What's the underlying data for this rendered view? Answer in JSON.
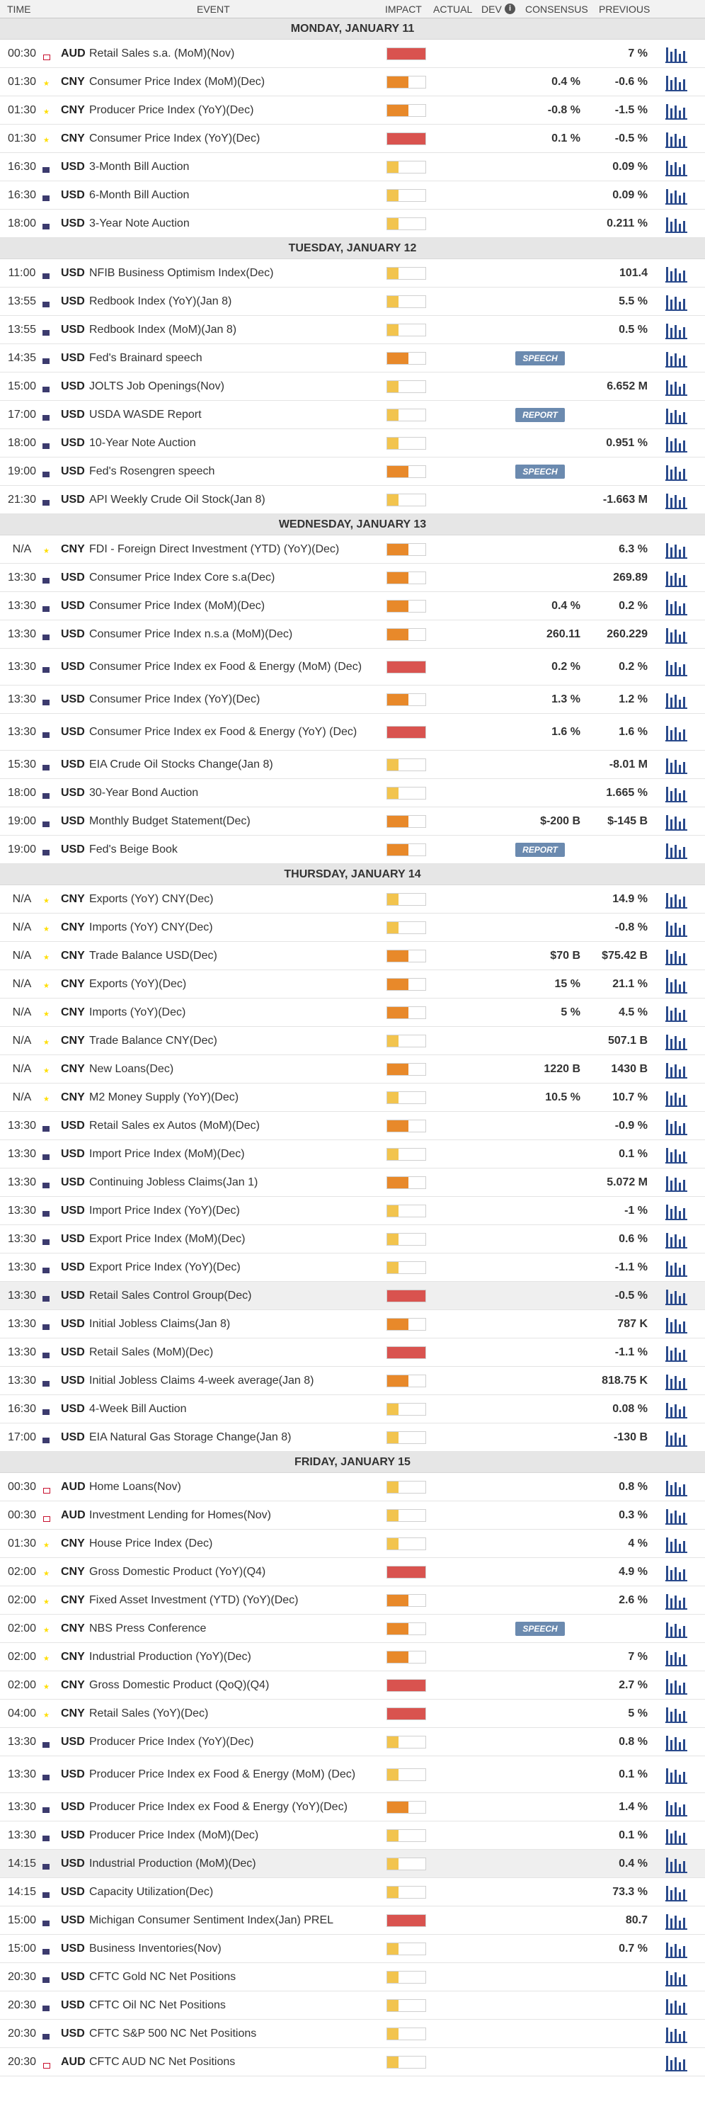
{
  "header": {
    "time": "TIME",
    "event": "EVENT",
    "impact": "IMPACT",
    "actual": "ACTUAL",
    "dev": "DEV",
    "consensus": "CONSENSUS",
    "previous": "PREVIOUS"
  },
  "impact_colors": {
    "high": "#d9534f",
    "medium": "#e8892a",
    "low": "#f2c44e"
  },
  "days": [
    {
      "label": "MONDAY, JANUARY 11",
      "events": [
        {
          "time": "00:30",
          "cur": "AUD",
          "flag": "au",
          "name": "Retail Sales s.a. (MoM)(Nov)",
          "impact": "high",
          "consensus": "",
          "previous": "7 %"
        },
        {
          "time": "01:30",
          "cur": "CNY",
          "flag": "cn",
          "name": "Consumer Price Index (MoM)(Dec)",
          "impact": "medium",
          "consensus": "0.4 %",
          "previous": "-0.6 %"
        },
        {
          "time": "01:30",
          "cur": "CNY",
          "flag": "cn",
          "name": "Producer Price Index (YoY)(Dec)",
          "impact": "medium",
          "consensus": "-0.8 %",
          "previous": "-1.5 %"
        },
        {
          "time": "01:30",
          "cur": "CNY",
          "flag": "cn",
          "name": "Consumer Price Index (YoY)(Dec)",
          "impact": "high",
          "consensus": "0.1 %",
          "previous": "-0.5 %"
        },
        {
          "time": "16:30",
          "cur": "USD",
          "flag": "us",
          "name": "3-Month Bill Auction",
          "impact": "low",
          "consensus": "",
          "previous": "0.09 %"
        },
        {
          "time": "16:30",
          "cur": "USD",
          "flag": "us",
          "name": "6-Month Bill Auction",
          "impact": "low",
          "consensus": "",
          "previous": "0.09 %"
        },
        {
          "time": "18:00",
          "cur": "USD",
          "flag": "us",
          "name": "3-Year Note Auction",
          "impact": "low",
          "consensus": "",
          "previous": "0.211 %"
        }
      ]
    },
    {
      "label": "TUESDAY, JANUARY 12",
      "events": [
        {
          "time": "11:00",
          "cur": "USD",
          "flag": "us",
          "name": "NFIB Business Optimism Index(Dec)",
          "impact": "low",
          "consensus": "",
          "previous": "101.4"
        },
        {
          "time": "13:55",
          "cur": "USD",
          "flag": "us",
          "name": "Redbook Index (YoY)(Jan 8)",
          "impact": "low",
          "consensus": "",
          "previous": "5.5 %"
        },
        {
          "time": "13:55",
          "cur": "USD",
          "flag": "us",
          "name": "Redbook Index (MoM)(Jan 8)",
          "impact": "low",
          "consensus": "",
          "previous": "0.5 %"
        },
        {
          "time": "14:35",
          "cur": "USD",
          "flag": "us",
          "name": "Fed's Brainard speech",
          "impact": "medium",
          "consensus": "",
          "previous": "",
          "tag": "SPEECH"
        },
        {
          "time": "15:00",
          "cur": "USD",
          "flag": "us",
          "name": "JOLTS Job Openings(Nov)",
          "impact": "low",
          "consensus": "",
          "previous": "6.652 M"
        },
        {
          "time": "17:00",
          "cur": "USD",
          "flag": "us",
          "name": "USDA WASDE Report",
          "impact": "low",
          "consensus": "",
          "previous": "",
          "tag": "REPORT"
        },
        {
          "time": "18:00",
          "cur": "USD",
          "flag": "us",
          "name": "10-Year Note Auction",
          "impact": "low",
          "consensus": "",
          "previous": "0.951 %"
        },
        {
          "time": "19:00",
          "cur": "USD",
          "flag": "us",
          "name": "Fed's Rosengren speech",
          "impact": "medium",
          "consensus": "",
          "previous": "",
          "tag": "SPEECH"
        },
        {
          "time": "21:30",
          "cur": "USD",
          "flag": "us",
          "name": "API Weekly Crude Oil Stock(Jan 8)",
          "impact": "low",
          "consensus": "",
          "previous": "-1.663 M"
        }
      ]
    },
    {
      "label": "WEDNESDAY, JANUARY 13",
      "events": [
        {
          "time": "N/A",
          "cur": "CNY",
          "flag": "cn",
          "name": "FDI - Foreign Direct Investment (YTD) (YoY)(Dec)",
          "impact": "medium",
          "consensus": "",
          "previous": "6.3 %"
        },
        {
          "time": "13:30",
          "cur": "USD",
          "flag": "us",
          "name": "Consumer Price Index Core s.a(Dec)",
          "impact": "medium",
          "consensus": "",
          "previous": "269.89"
        },
        {
          "time": "13:30",
          "cur": "USD",
          "flag": "us",
          "name": "Consumer Price Index (MoM)(Dec)",
          "impact": "medium",
          "consensus": "0.4 %",
          "previous": "0.2 %"
        },
        {
          "time": "13:30",
          "cur": "USD",
          "flag": "us",
          "name": "Consumer Price Index n.s.a (MoM)(Dec)",
          "impact": "medium",
          "consensus": "260.11",
          "previous": "260.229"
        },
        {
          "time": "13:30",
          "cur": "USD",
          "flag": "us",
          "name": "Consumer Price Index ex Food & Energy (MoM) (Dec)",
          "impact": "high",
          "consensus": "0.2 %",
          "previous": "0.2 %",
          "tall": true
        },
        {
          "time": "13:30",
          "cur": "USD",
          "flag": "us",
          "name": "Consumer Price Index (YoY)(Dec)",
          "impact": "medium",
          "consensus": "1.3 %",
          "previous": "1.2 %"
        },
        {
          "time": "13:30",
          "cur": "USD",
          "flag": "us",
          "name": "Consumer Price Index ex Food & Energy (YoY) (Dec)",
          "impact": "high",
          "consensus": "1.6 %",
          "previous": "1.6 %",
          "tall": true
        },
        {
          "time": "15:30",
          "cur": "USD",
          "flag": "us",
          "name": "EIA Crude Oil Stocks Change(Jan 8)",
          "impact": "low",
          "consensus": "",
          "previous": "-8.01 M"
        },
        {
          "time": "18:00",
          "cur": "USD",
          "flag": "us",
          "name": "30-Year Bond Auction",
          "impact": "low",
          "consensus": "",
          "previous": "1.665 %"
        },
        {
          "time": "19:00",
          "cur": "USD",
          "flag": "us",
          "name": "Monthly Budget Statement(Dec)",
          "impact": "medium",
          "consensus": "$-200 B",
          "previous": "$-145 B"
        },
        {
          "time": "19:00",
          "cur": "USD",
          "flag": "us",
          "name": "Fed's Beige Book",
          "impact": "medium",
          "consensus": "",
          "previous": "",
          "tag": "REPORT"
        }
      ]
    },
    {
      "label": "THURSDAY, JANUARY 14",
      "events": [
        {
          "time": "N/A",
          "cur": "CNY",
          "flag": "cn",
          "name": "Exports (YoY) CNY(Dec)",
          "impact": "low",
          "consensus": "",
          "previous": "14.9 %"
        },
        {
          "time": "N/A",
          "cur": "CNY",
          "flag": "cn",
          "name": "Imports (YoY) CNY(Dec)",
          "impact": "low",
          "consensus": "",
          "previous": "-0.8 %"
        },
        {
          "time": "N/A",
          "cur": "CNY",
          "flag": "cn",
          "name": "Trade Balance USD(Dec)",
          "impact": "medium",
          "consensus": "$70 B",
          "previous": "$75.42 B"
        },
        {
          "time": "N/A",
          "cur": "CNY",
          "flag": "cn",
          "name": "Exports (YoY)(Dec)",
          "impact": "medium",
          "consensus": "15 %",
          "previous": "21.1 %"
        },
        {
          "time": "N/A",
          "cur": "CNY",
          "flag": "cn",
          "name": "Imports (YoY)(Dec)",
          "impact": "medium",
          "consensus": "5 %",
          "previous": "4.5 %"
        },
        {
          "time": "N/A",
          "cur": "CNY",
          "flag": "cn",
          "name": "Trade Balance CNY(Dec)",
          "impact": "low",
          "consensus": "",
          "previous": "507.1 B"
        },
        {
          "time": "N/A",
          "cur": "CNY",
          "flag": "cn",
          "name": "New Loans(Dec)",
          "impact": "medium",
          "consensus": "1220 B",
          "previous": "1430 B"
        },
        {
          "time": "N/A",
          "cur": "CNY",
          "flag": "cn",
          "name": "M2 Money Supply (YoY)(Dec)",
          "impact": "low",
          "consensus": "10.5 %",
          "previous": "10.7 %"
        },
        {
          "time": "13:30",
          "cur": "USD",
          "flag": "us",
          "name": "Retail Sales ex Autos (MoM)(Dec)",
          "impact": "medium",
          "consensus": "",
          "previous": "-0.9 %"
        },
        {
          "time": "13:30",
          "cur": "USD",
          "flag": "us",
          "name": "Import Price Index (MoM)(Dec)",
          "impact": "low",
          "consensus": "",
          "previous": "0.1 %"
        },
        {
          "time": "13:30",
          "cur": "USD",
          "flag": "us",
          "name": "Continuing Jobless Claims(Jan 1)",
          "impact": "medium",
          "consensus": "",
          "previous": "5.072 M"
        },
        {
          "time": "13:30",
          "cur": "USD",
          "flag": "us",
          "name": "Import Price Index (YoY)(Dec)",
          "impact": "low",
          "consensus": "",
          "previous": "-1 %"
        },
        {
          "time": "13:30",
          "cur": "USD",
          "flag": "us",
          "name": "Export Price Index (MoM)(Dec)",
          "impact": "low",
          "consensus": "",
          "previous": "0.6 %"
        },
        {
          "time": "13:30",
          "cur": "USD",
          "flag": "us",
          "name": "Export Price Index (YoY)(Dec)",
          "impact": "low",
          "consensus": "",
          "previous": "-1.1 %"
        },
        {
          "time": "13:30",
          "cur": "USD",
          "flag": "us",
          "name": "Retail Sales Control Group(Dec)",
          "impact": "high",
          "consensus": "",
          "previous": "-0.5 %",
          "hl": true
        },
        {
          "time": "13:30",
          "cur": "USD",
          "flag": "us",
          "name": "Initial Jobless Claims(Jan 8)",
          "impact": "medium",
          "consensus": "",
          "previous": "787 K"
        },
        {
          "time": "13:30",
          "cur": "USD",
          "flag": "us",
          "name": "Retail Sales (MoM)(Dec)",
          "impact": "high",
          "consensus": "",
          "previous": "-1.1 %"
        },
        {
          "time": "13:30",
          "cur": "USD",
          "flag": "us",
          "name": "Initial Jobless Claims 4-week average(Jan 8)",
          "impact": "medium",
          "consensus": "",
          "previous": "818.75 K"
        },
        {
          "time": "16:30",
          "cur": "USD",
          "flag": "us",
          "name": "4-Week Bill Auction",
          "impact": "low",
          "consensus": "",
          "previous": "0.08 %"
        },
        {
          "time": "17:00",
          "cur": "USD",
          "flag": "us",
          "name": "EIA Natural Gas Storage Change(Jan 8)",
          "impact": "low",
          "consensus": "",
          "previous": "-130 B"
        }
      ]
    },
    {
      "label": "FRIDAY, JANUARY 15",
      "events": [
        {
          "time": "00:30",
          "cur": "AUD",
          "flag": "au",
          "name": "Home Loans(Nov)",
          "impact": "low",
          "consensus": "",
          "previous": "0.8 %"
        },
        {
          "time": "00:30",
          "cur": "AUD",
          "flag": "au",
          "name": "Investment Lending for Homes(Nov)",
          "impact": "low",
          "consensus": "",
          "previous": "0.3 %"
        },
        {
          "time": "01:30",
          "cur": "CNY",
          "flag": "cn",
          "name": "House Price Index (Dec)",
          "impact": "low",
          "consensus": "",
          "previous": "4 %"
        },
        {
          "time": "02:00",
          "cur": "CNY",
          "flag": "cn",
          "name": "Gross Domestic Product (YoY)(Q4)",
          "impact": "high",
          "consensus": "",
          "previous": "4.9 %"
        },
        {
          "time": "02:00",
          "cur": "CNY",
          "flag": "cn",
          "name": "Fixed Asset Investment (YTD) (YoY)(Dec)",
          "impact": "medium",
          "consensus": "",
          "previous": "2.6 %"
        },
        {
          "time": "02:00",
          "cur": "CNY",
          "flag": "cn",
          "name": "NBS Press Conference",
          "impact": "medium",
          "consensus": "",
          "previous": "",
          "tag": "SPEECH"
        },
        {
          "time": "02:00",
          "cur": "CNY",
          "flag": "cn",
          "name": "Industrial Production (YoY)(Dec)",
          "impact": "medium",
          "consensus": "",
          "previous": "7 %"
        },
        {
          "time": "02:00",
          "cur": "CNY",
          "flag": "cn",
          "name": "Gross Domestic Product (QoQ)(Q4)",
          "impact": "high",
          "consensus": "",
          "previous": "2.7 %"
        },
        {
          "time": "04:00",
          "cur": "CNY",
          "flag": "cn",
          "name": "Retail Sales (YoY)(Dec)",
          "impact": "high",
          "consensus": "",
          "previous": "5 %"
        },
        {
          "time": "13:30",
          "cur": "USD",
          "flag": "us",
          "name": "Producer Price Index (YoY)(Dec)",
          "impact": "low",
          "consensus": "",
          "previous": "0.8 %"
        },
        {
          "time": "13:30",
          "cur": "USD",
          "flag": "us",
          "name": "Producer Price Index ex Food & Energy (MoM) (Dec)",
          "impact": "low",
          "consensus": "",
          "previous": "0.1 %",
          "tall": true
        },
        {
          "time": "13:30",
          "cur": "USD",
          "flag": "us",
          "name": "Producer Price Index ex Food & Energy (YoY)(Dec)",
          "impact": "medium",
          "consensus": "",
          "previous": "1.4 %"
        },
        {
          "time": "13:30",
          "cur": "USD",
          "flag": "us",
          "name": "Producer Price Index (MoM)(Dec)",
          "impact": "low",
          "consensus": "",
          "previous": "0.1 %"
        },
        {
          "time": "14:15",
          "cur": "USD",
          "flag": "us",
          "name": "Industrial Production (MoM)(Dec)",
          "impact": "low",
          "consensus": "",
          "previous": "0.4 %",
          "hl": true
        },
        {
          "time": "14:15",
          "cur": "USD",
          "flag": "us",
          "name": "Capacity Utilization(Dec)",
          "impact": "low",
          "consensus": "",
          "previous": "73.3 %"
        },
        {
          "time": "15:00",
          "cur": "USD",
          "flag": "us",
          "name": "Michigan Consumer Sentiment Index(Jan) PREL",
          "impact": "high",
          "consensus": "",
          "previous": "80.7"
        },
        {
          "time": "15:00",
          "cur": "USD",
          "flag": "us",
          "name": "Business Inventories(Nov)",
          "impact": "low",
          "consensus": "",
          "previous": "0.7 %"
        },
        {
          "time": "20:30",
          "cur": "USD",
          "flag": "us",
          "name": "CFTC Gold NC Net Positions",
          "impact": "low",
          "consensus": "",
          "previous": ""
        },
        {
          "time": "20:30",
          "cur": "USD",
          "flag": "us",
          "name": "CFTC Oil NC Net Positions",
          "impact": "low",
          "consensus": "",
          "previous": ""
        },
        {
          "time": "20:30",
          "cur": "USD",
          "flag": "us",
          "name": "CFTC S&P 500 NC Net Positions",
          "impact": "low",
          "consensus": "",
          "previous": ""
        },
        {
          "time": "20:30",
          "cur": "AUD",
          "flag": "au",
          "name": "CFTC AUD NC Net Positions",
          "impact": "low",
          "consensus": "",
          "previous": ""
        }
      ]
    }
  ]
}
